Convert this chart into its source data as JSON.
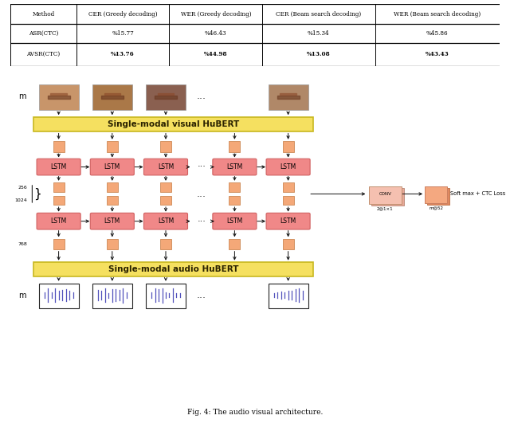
{
  "title": "Fig. 4: The audio visual architecture.",
  "table": {
    "headers": [
      "Method",
      "CER (Greedy decoding)",
      "WER (Greedy decoding)",
      "CER (Beam search decoding)",
      "WER (Beam search decoding)"
    ],
    "rows": [
      [
        "ASR(CTC)",
        "%15.77",
        "%46.43",
        "%15.34",
        "%45.86"
      ],
      [
        "AVSR(CTC)",
        "%13.76",
        "%44.98",
        "%13.08",
        "%43.43"
      ]
    ]
  },
  "colors": {
    "lstm_box": "#f08888",
    "lstm_box_edge": "#d06060",
    "connector_box": "#f4a878",
    "connector_box_edge": "#cc8855",
    "hubert_box": "#f5e060",
    "hubert_box_edge": "#c8b820",
    "conv_box": "#f5c0b0",
    "conv_shadow": "#e8a898",
    "softmax_box": "#f4a880",
    "softmax_shadow": "#e08860",
    "arrow_color": "#111111"
  },
  "diagram": {
    "hubert_visual_label": "Single-modal visual HuBERT",
    "hubert_audio_label": "Single-modal audio HuBERT",
    "dim_visual": "256",
    "dim_concat": "1024",
    "dim_audio": "768",
    "conv_label": "CONV",
    "conv_size_label": "2@1×1",
    "softmax_label": "m@52",
    "softmax_text": "Soft max + CTC Loss"
  }
}
